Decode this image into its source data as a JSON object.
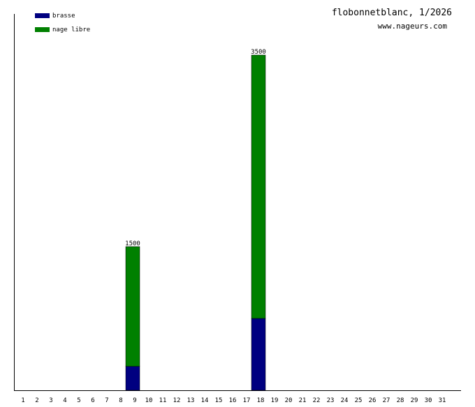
{
  "chart_data": {
    "type": "stacked-bar",
    "title": "flobonnetblanc, 1/2026",
    "subtitle": "www.nageurs.com",
    "categories": [
      "1",
      "2",
      "3",
      "4",
      "5",
      "6",
      "7",
      "8",
      "9",
      "10",
      "11",
      "12",
      "13",
      "14",
      "15",
      "16",
      "17",
      "18",
      "19",
      "20",
      "21",
      "22",
      "23",
      "24",
      "25",
      "26",
      "27",
      "28",
      "29",
      "30",
      "31"
    ],
    "series": [
      {
        "name": "brasse",
        "color": "#000080",
        "values": [
          0,
          0,
          0,
          0,
          0,
          0,
          0,
          0,
          250,
          0,
          0,
          0,
          0,
          0,
          0,
          0,
          0,
          750,
          0,
          0,
          0,
          0,
          0,
          0,
          0,
          0,
          0,
          0,
          0,
          0,
          0
        ]
      },
      {
        "name": "nage libre",
        "color": "#008000",
        "values": [
          0,
          0,
          0,
          0,
          0,
          0,
          0,
          0,
          1250,
          0,
          0,
          0,
          0,
          0,
          0,
          0,
          0,
          2750,
          0,
          0,
          0,
          0,
          0,
          0,
          0,
          0,
          0,
          0,
          0,
          0,
          0
        ]
      }
    ],
    "totals": [
      null,
      null,
      null,
      null,
      null,
      null,
      null,
      null,
      1500,
      null,
      null,
      null,
      null,
      null,
      null,
      null,
      null,
      3500,
      null,
      null,
      null,
      null,
      null,
      null,
      null,
      null,
      null,
      null,
      null,
      null,
      null
    ],
    "ylim": [
      0,
      3500
    ],
    "legend": "top-left"
  }
}
